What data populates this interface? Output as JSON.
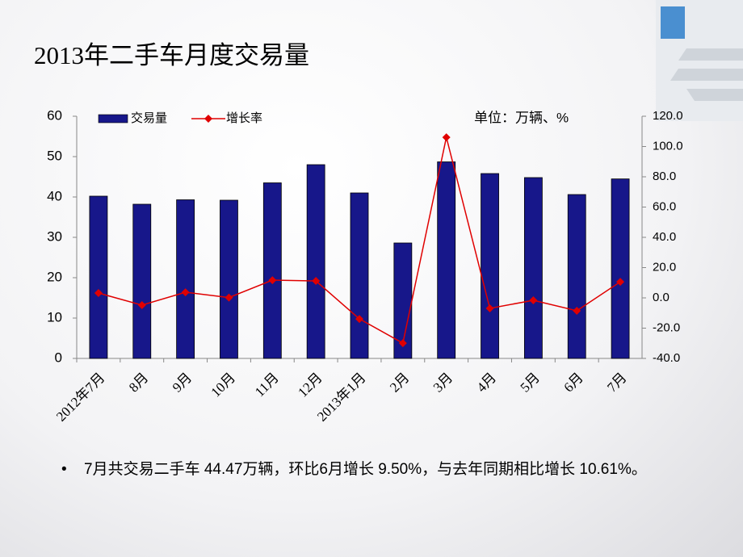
{
  "chart_data": {
    "type": "bar",
    "title": "2013年二手车月度交易量",
    "unit": "单位：万辆、%",
    "categories": [
      "2012年7月",
      "8月",
      "9月",
      "10月",
      "11月",
      "12月",
      "2013年1月",
      "2月",
      "3月",
      "4月",
      "5月",
      "6月",
      "7月"
    ],
    "series": [
      {
        "name": "交易量",
        "type": "bar",
        "color": "#17178a",
        "values": [
          40.2,
          38.2,
          39.3,
          39.2,
          43.5,
          48.0,
          41.0,
          28.6,
          48.7,
          45.8,
          44.8,
          40.6,
          44.47
        ]
      },
      {
        "name": "增长率",
        "type": "line",
        "color": "#e00000",
        "axis": "y2",
        "values": [
          3.2,
          -4.8,
          3.7,
          0.2,
          11.7,
          11.2,
          -13.9,
          -29.9,
          106.1,
          -6.9,
          -1.6,
          -8.5,
          10.61
        ]
      }
    ],
    "ylim": [
      0,
      60
    ],
    "yticks": [
      0,
      10,
      20,
      30,
      40,
      50,
      60
    ],
    "y2lim": [
      -40,
      120
    ],
    "y2ticks": [
      {
        "value": -40,
        "label": "-40.0"
      },
      {
        "value": -20,
        "label": "-20.0"
      },
      {
        "value": 0,
        "label": "0.0"
      },
      {
        "value": 20,
        "label": "20.0"
      },
      {
        "value": 40,
        "label": "40.0"
      },
      {
        "value": 60,
        "label": "60.0"
      },
      {
        "value": 80,
        "label": "80.0"
      },
      {
        "value": 100,
        "label": "100.0"
      },
      {
        "value": 120,
        "label": "120.0"
      }
    ],
    "grid": false
  },
  "note": "7月共交易二手车 44.47万辆，环比6月增长 9.50%，与去年同期相比增长 10.61%。"
}
